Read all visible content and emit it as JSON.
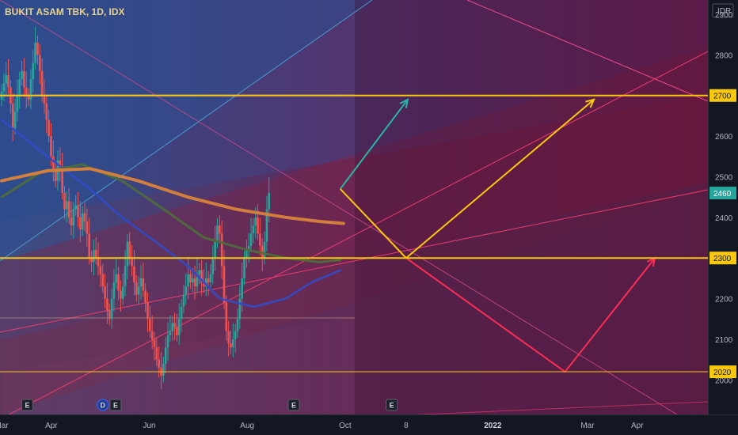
{
  "header": {
    "title": "BUKIT ASAM TBK, 1D, IDX"
  },
  "axis": {
    "currency": "IDR"
  },
  "colors": {
    "background": "#131722",
    "up_candle": "#26a69a",
    "down_candle": "#ef5350",
    "level_line": "#f9c80e",
    "last_price_bg": "#26a69a",
    "ma_fast": "#2f4bc8",
    "ma_mid": "#4e6b3c",
    "ma_slow": "#d9823b",
    "channel": "#ff2d55",
    "arrow_teal": "#2bb3a4",
    "arrow_yellow": "#f9c80e",
    "arrow_red": "#ff2d55"
  },
  "chart_data": {
    "type": "candlestick",
    "title": "BUKIT ASAM TBK, 1D, IDX",
    "ylabel": "IDR",
    "y_ticks": [
      2000,
      2100,
      2200,
      2300,
      2400,
      2500,
      2600,
      2700,
      2800,
      2900
    ],
    "ylim": [
      1915,
      2935
    ],
    "x_ticks": [
      {
        "label": "Mar",
        "date": "2021-03-01",
        "bold": false
      },
      {
        "label": "Apr",
        "date": "2021-04-01",
        "bold": false
      },
      {
        "label": "Jun",
        "date": "2021-06-01",
        "bold": false
      },
      {
        "label": "Aug",
        "date": "2021-08-01",
        "bold": false
      },
      {
        "label": "Oct",
        "date": "2021-10-01",
        "bold": false
      },
      {
        "label": "8",
        "date": "2021-11-08",
        "bold": false
      },
      {
        "label": "2022",
        "date": "2022-01-01",
        "bold": true
      },
      {
        "label": "Mar",
        "date": "2022-03-01",
        "bold": false
      },
      {
        "label": "Apr",
        "date": "2022-04-01",
        "bold": false
      }
    ],
    "xlim": [
      "2021-02-28",
      "2022-05-15"
    ],
    "last_price": 2460,
    "horizontal_levels": [
      {
        "price": 2700,
        "label": "2700"
      },
      {
        "price": 2300,
        "label": "2300"
      },
      {
        "price": 2020,
        "label": "2020"
      }
    ],
    "grid": false,
    "events": [
      {
        "label": "E",
        "date": "2021-03-17",
        "style": "dark"
      },
      {
        "label": "D",
        "date": "2021-05-03",
        "style": "blue"
      },
      {
        "label": "E",
        "date": "2021-05-11",
        "style": "dark"
      },
      {
        "label": "E",
        "date": "2021-08-30",
        "style": "dark"
      },
      {
        "label": "E",
        "date": "2021-10-30",
        "style": "dark"
      }
    ],
    "series": [
      {
        "name": "",
        "type": "candlestick",
        "start_date": "2021-03-01",
        "trading_day_step": 1.4,
        "close": [
          2710,
          2730,
          2750,
          2720,
          2680,
          2620,
          2660,
          2700,
          2740,
          2760,
          2720,
          2700,
          2690,
          2740,
          2780,
          2830,
          2800,
          2760,
          2700,
          2680,
          2640,
          2600,
          2550,
          2520,
          2490,
          2540,
          2520,
          2460,
          2420,
          2440,
          2400,
          2380,
          2420,
          2430,
          2400,
          2370,
          2410,
          2390,
          2360,
          2300,
          2290,
          2320,
          2300,
          2280,
          2260,
          2230,
          2200,
          2170,
          2150,
          2200,
          2240,
          2260,
          2220,
          2200,
          2230,
          2280,
          2340,
          2300,
          2280,
          2240,
          2210,
          2230,
          2250,
          2220,
          2190,
          2150,
          2120,
          2100,
          2080,
          2050,
          2030,
          2010,
          2040,
          2080,
          2110,
          2120,
          2140,
          2130,
          2110,
          2150,
          2180,
          2210,
          2230,
          2260,
          2240,
          2250,
          2230,
          2260,
          2270,
          2240,
          2230,
          2250,
          2240,
          2260,
          2300,
          2340,
          2380,
          2360,
          2280,
          2190,
          2120,
          2090,
          2080,
          2100,
          2120,
          2150,
          2200,
          2250,
          2300,
          2320,
          2330,
          2360,
          2380,
          2400,
          2360,
          2330,
          2300,
          2340,
          2420,
          2460
        ]
      },
      {
        "name": "",
        "type": "line",
        "role": "ma_fast",
        "points": [
          [
            "2021-03-01",
            2640
          ],
          [
            "2021-03-20",
            2580
          ],
          [
            "2021-04-05",
            2530
          ],
          [
            "2021-04-25",
            2470
          ],
          [
            "2021-05-15",
            2400
          ],
          [
            "2021-06-05",
            2340
          ],
          [
            "2021-06-25",
            2280
          ],
          [
            "2021-07-15",
            2200
          ],
          [
            "2021-08-05",
            2180
          ],
          [
            "2021-08-25",
            2200
          ],
          [
            "2021-09-10",
            2240
          ],
          [
            "2021-09-28",
            2270
          ]
        ]
      },
      {
        "name": "",
        "type": "line",
        "role": "ma_mid",
        "points": [
          [
            "2021-03-01",
            2450
          ],
          [
            "2021-03-25",
            2510
          ],
          [
            "2021-04-20",
            2530
          ],
          [
            "2021-05-15",
            2490
          ],
          [
            "2021-06-10",
            2420
          ],
          [
            "2021-07-05",
            2350
          ],
          [
            "2021-08-01",
            2320
          ],
          [
            "2021-08-25",
            2300
          ],
          [
            "2021-09-15",
            2290
          ],
          [
            "2021-09-28",
            2295
          ]
        ]
      },
      {
        "name": "",
        "type": "line",
        "role": "ma_slow",
        "points": [
          [
            "2021-03-01",
            2490
          ],
          [
            "2021-03-30",
            2515
          ],
          [
            "2021-04-25",
            2520
          ],
          [
            "2021-05-25",
            2490
          ],
          [
            "2021-06-25",
            2450
          ],
          [
            "2021-07-25",
            2420
          ],
          [
            "2021-08-25",
            2400
          ],
          [
            "2021-09-15",
            2390
          ],
          [
            "2021-09-30",
            2385
          ]
        ]
      }
    ],
    "drawings": [
      {
        "kind": "arrow",
        "color": "teal",
        "points": [
          [
            "2021-09-28",
            2470
          ],
          [
            "2021-11-09",
            2690
          ]
        ]
      },
      {
        "kind": "arrow",
        "color": "yellow",
        "points": [
          [
            "2021-09-28",
            2470
          ],
          [
            "2021-11-08",
            2300
          ],
          [
            "2022-03-05",
            2690
          ]
        ]
      },
      {
        "kind": "arrow",
        "color": "red",
        "points": [
          [
            "2021-11-08",
            2300
          ],
          [
            "2022-02-15",
            2020
          ],
          [
            "2022-04-12",
            2300
          ]
        ]
      }
    ]
  }
}
